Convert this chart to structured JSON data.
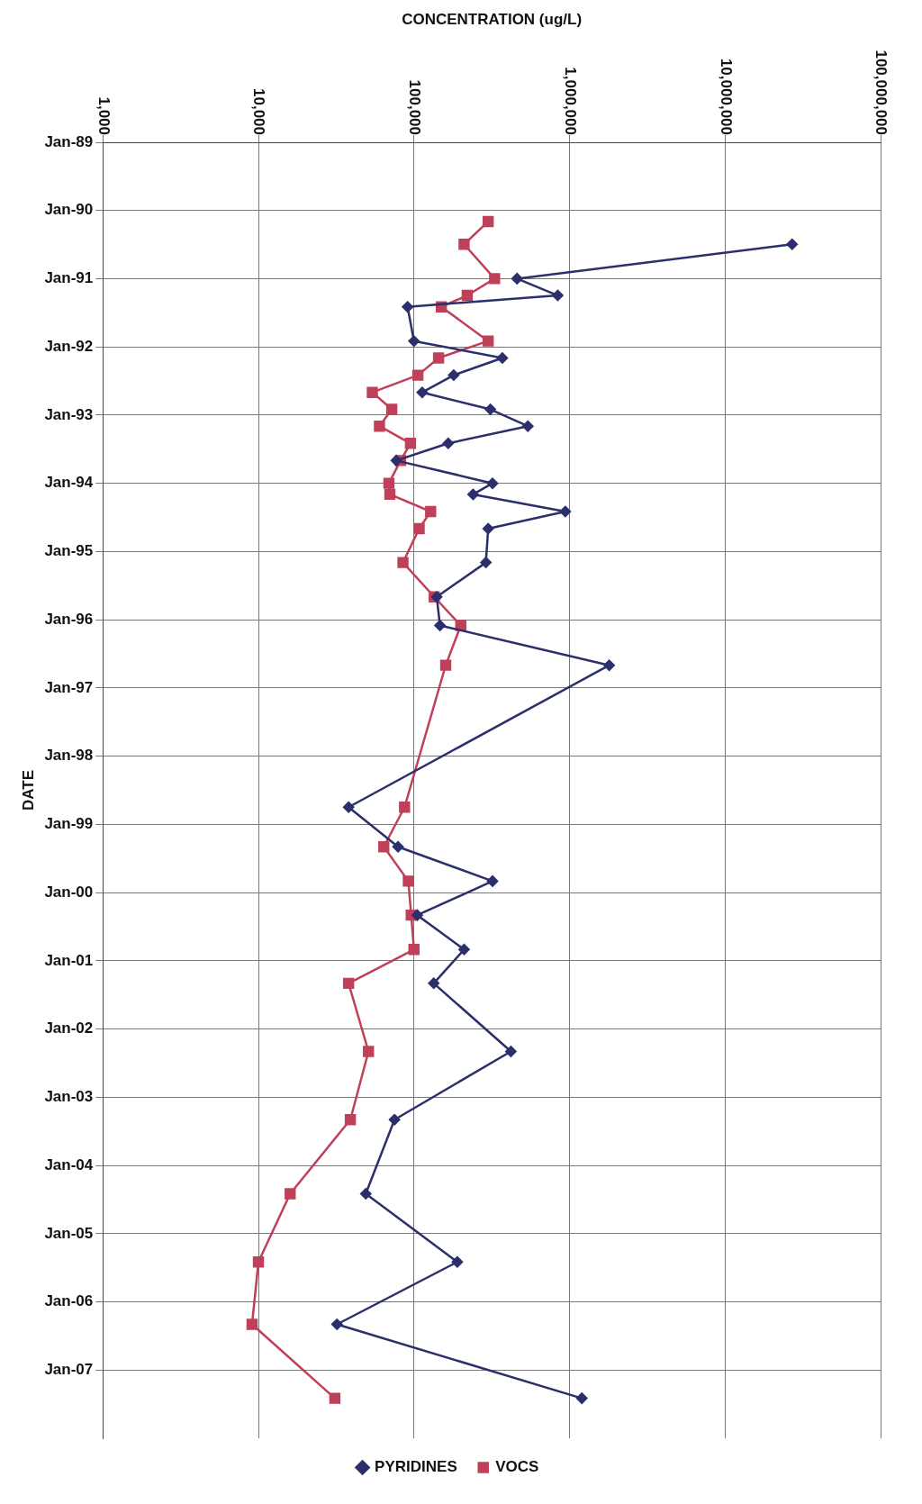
{
  "chart_data": {
    "type": "line",
    "orientation": "horizontal",
    "xlabel": "CONCENTRATION (ug/L)",
    "ylabel": "DATE",
    "log": "x",
    "grid": true,
    "legend": "bottom",
    "line_style": "solid",
    "xlim": [
      1000,
      100000000
    ],
    "xticks": [
      {
        "value": 1000,
        "label": "1,000"
      },
      {
        "value": 10000,
        "label": "10,000"
      },
      {
        "value": 100000,
        "label": "100,000"
      },
      {
        "value": 1000000,
        "label": "1,000,000"
      },
      {
        "value": 10000000,
        "label": "10,000,000"
      },
      {
        "value": 100000000,
        "label": "100,000,000"
      }
    ],
    "ylim": [
      "2008-01",
      "1989-01"
    ],
    "yticks": [
      {
        "value": "1989-01",
        "label": "Jan-89"
      },
      {
        "value": "1990-01",
        "label": "Jan-90"
      },
      {
        "value": "1991-01",
        "label": "Jan-91"
      },
      {
        "value": "1992-01",
        "label": "Jan-92"
      },
      {
        "value": "1993-01",
        "label": "Jan-93"
      },
      {
        "value": "1994-01",
        "label": "Jan-94"
      },
      {
        "value": "1995-01",
        "label": "Jan-95"
      },
      {
        "value": "1996-01",
        "label": "Jan-96"
      },
      {
        "value": "1997-01",
        "label": "Jan-97"
      },
      {
        "value": "1998-01",
        "label": "Jan-98"
      },
      {
        "value": "1999-01",
        "label": "Jan-99"
      },
      {
        "value": "2000-01",
        "label": "Jan-00"
      },
      {
        "value": "2001-01",
        "label": "Jan-01"
      },
      {
        "value": "2002-01",
        "label": "Jan-02"
      },
      {
        "value": "2003-01",
        "label": "Jan-03"
      },
      {
        "value": "2004-01",
        "label": "Jan-04"
      },
      {
        "value": "2005-01",
        "label": "Jan-05"
      },
      {
        "value": "2006-01",
        "label": "Jan-06"
      },
      {
        "value": "2007-01",
        "label": "Jan-07"
      }
    ],
    "series": [
      {
        "name": "PYRIDINES",
        "color": "#2b2f6b",
        "marker": "diamond",
        "x": [
          "1990-07",
          "1991-01",
          "1991-04",
          "1991-06",
          "1991-12",
          "1992-03",
          "1992-06",
          "1992-09",
          "1992-12",
          "1993-03",
          "1993-06",
          "1993-09",
          "1994-01",
          "1994-03",
          "1994-06",
          "1994-09",
          "1995-03",
          "1995-09",
          "1996-02",
          "1996-09",
          "1998-10",
          "1999-05",
          "1999-11",
          "2000-05",
          "2000-11",
          "2001-05",
          "2002-05",
          "2003-05",
          "2004-06",
          "2005-06",
          "2006-05",
          "2007-06"
        ],
        "values": [
          27000000,
          460000,
          840000,
          91000,
          100000,
          370000,
          180000,
          113000,
          310000,
          540000,
          166000,
          77000,
          320000,
          240000,
          940000,
          300000,
          290000,
          140000,
          147000,
          1800000,
          38000,
          79000,
          320000,
          105000,
          210000,
          134000,
          420000,
          75000,
          49000,
          190000,
          32000,
          1200000
        ]
      },
      {
        "name": "VOCS",
        "color": "#c0405a",
        "marker": "square",
        "x": [
          "1990-03",
          "1990-07",
          "1991-01",
          "1991-04",
          "1991-06",
          "1991-12",
          "1992-03",
          "1992-06",
          "1992-09",
          "1992-12",
          "1993-03",
          "1993-06",
          "1993-09",
          "1994-01",
          "1994-03",
          "1994-06",
          "1994-09",
          "1995-03",
          "1995-09",
          "1996-02",
          "1996-09",
          "1998-10",
          "1999-05",
          "1999-11",
          "2000-05",
          "2000-11",
          "2001-05",
          "2002-05",
          "2003-05",
          "2004-06",
          "2005-06",
          "2006-05",
          "2007-06"
        ],
        "values": [
          300000,
          210000,
          330000,
          220000,
          150000,
          300000,
          144000,
          106000,
          54000,
          72000,
          60000,
          95000,
          82000,
          69000,
          70000,
          128000,
          108000,
          85000,
          135000,
          200000,
          160000,
          87000,
          64000,
          92000,
          96000,
          100000,
          38000,
          51000,
          39000,
          16000,
          10000,
          9100,
          31000
        ]
      }
    ]
  }
}
